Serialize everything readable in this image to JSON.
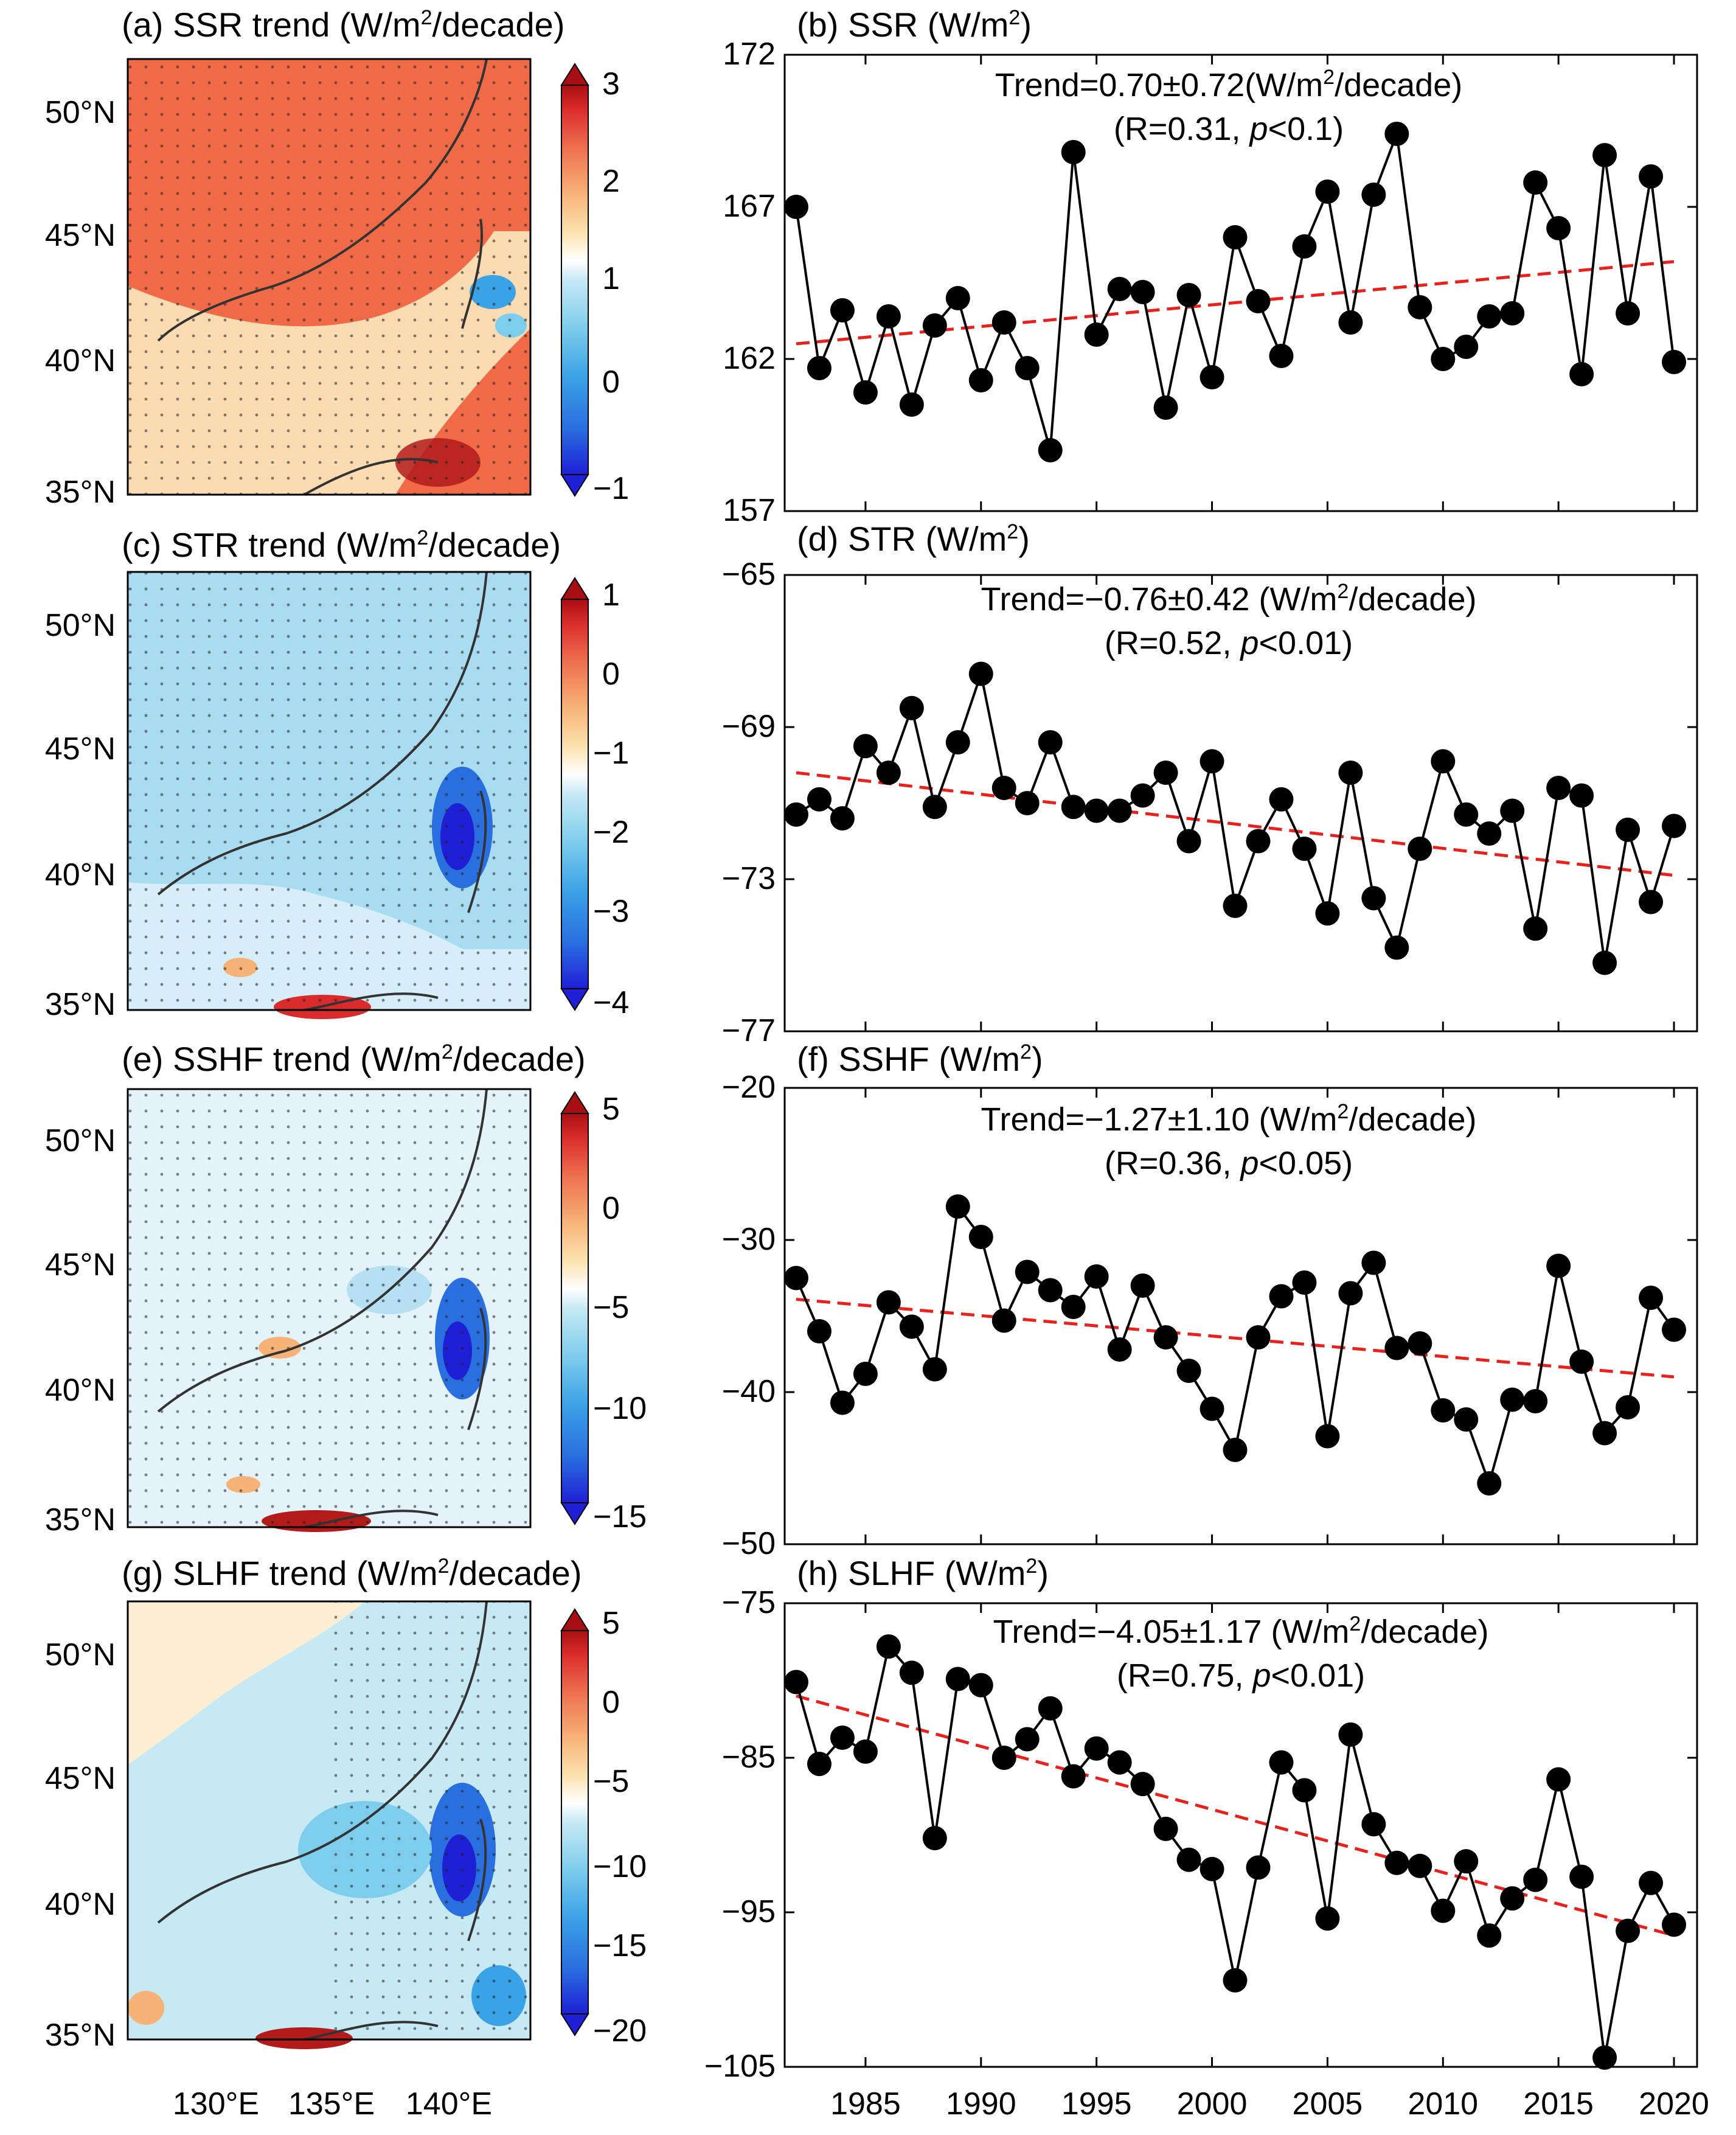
{
  "colors": {
    "marker": "#000000",
    "series_line": "#000000",
    "trend_line": "#e8211c",
    "map_cmap": [
      "#1f1fd6",
      "#2a6fe0",
      "#3aa2e6",
      "#7fcdec",
      "#c7e9f4",
      "#ffffff",
      "#fbe3b0",
      "#f7b377",
      "#ee6f4e",
      "#d92b2b",
      "#a80f12"
    ],
    "stipple": "#222222",
    "land": "#e9f2f6",
    "coast": "#333333"
  },
  "map_axes": {
    "lat_ticks": [
      "50°N",
      "45°N",
      "40°N",
      "35°N"
    ],
    "lon_ticks": [
      "130°E",
      "135°E",
      "140°E"
    ]
  },
  "panels": [
    {
      "map": {
        "title_pre": "(a) SSR trend (W/m",
        "title_sup": "2",
        "title_post": "/decade)",
        "field_mean": "warm",
        "colorbar_ticks": [
          "3",
          "2",
          "1",
          "0",
          "−1"
        ],
        "colorbar_range": [
          -1,
          3
        ]
      },
      "series": {
        "title_pre": "(b) SSR (W/m",
        "title_sup": "2",
        "title_post": ")",
        "trend_pre": "Trend=0.70±0.72(W/m",
        "trend_sup": "2",
        "trend_post": "/decade)",
        "stats_pre": "(R=0.31, ",
        "stats_p": "p",
        "stats_post": "<0.1)",
        "y_ticks": [
          "172",
          "167",
          "162",
          "157"
        ]
      }
    },
    {
      "map": {
        "title_pre": "(c) STR trend (W/m",
        "title_sup": "2",
        "title_post": "/decade)",
        "field_mean": "cool_light",
        "colorbar_ticks": [
          "1",
          "0",
          "−1",
          "−2",
          "−3",
          "−4"
        ],
        "colorbar_range": [
          -4,
          1
        ]
      },
      "series": {
        "title_pre": "(d) STR (W/m",
        "title_sup": "2",
        "title_post": ")",
        "trend_pre": "Trend=−0.76±0.42 (W/m",
        "trend_sup": "2",
        "trend_post": "/decade)",
        "stats_pre": "(R=0.52, ",
        "stats_p": "p",
        "stats_post": "<0.01)",
        "y_ticks": [
          "−65",
          "−69",
          "−73",
          "−77"
        ]
      }
    },
    {
      "map": {
        "title_pre": "(e) SSHF trend (W/m",
        "title_sup": "2",
        "title_post": "/decade)",
        "field_mean": "neutral",
        "colorbar_ticks": [
          "5",
          "0",
          "−5",
          "−10",
          "−15"
        ],
        "colorbar_range": [
          -15,
          5
        ]
      },
      "series": {
        "title_pre": "(f) SSHF (W/m",
        "title_sup": "2",
        "title_post": ")",
        "trend_pre": "Trend=−1.27±1.10 (W/m",
        "trend_sup": "2",
        "trend_post": "/decade)",
        "stats_pre": "(R=0.36, ",
        "stats_p": "p",
        "stats_post": "<0.05)",
        "y_ticks": [
          "−20",
          "−30",
          "−40",
          "−50"
        ]
      }
    },
    {
      "map": {
        "title_pre": "(g) SLHF trend (W/m",
        "title_sup": "2",
        "title_post": "/decade)",
        "field_mean": "cool",
        "colorbar_ticks": [
          "5",
          "0",
          "−5",
          "−10",
          "−15",
          "−20"
        ],
        "colorbar_range": [
          -20,
          5
        ]
      },
      "series": {
        "title_pre": "(h) SLHF (W/m",
        "title_sup": "2",
        "title_post": ")",
        "trend_pre": "Trend=−4.05±1.17 (W/m",
        "trend_sup": "2",
        "trend_post": "/decade)",
        "stats_pre": "(R=0.75, ",
        "stats_p": "p",
        "stats_post": "<0.01)",
        "y_ticks": [
          "−75",
          "−85",
          "−95",
          "−105"
        ]
      }
    }
  ],
  "x_ticks": [
    "1985",
    "1990",
    "1995",
    "2000",
    "2005",
    "2010",
    "2015",
    "2020"
  ],
  "chart_data": [
    {
      "type": "line",
      "name": "SSR",
      "title": "(b) SSR (W/m2)",
      "ylabel": "W/m2",
      "x": [
        1982,
        1983,
        1984,
        1985,
        1986,
        1987,
        1988,
        1989,
        1990,
        1991,
        1992,
        1993,
        1994,
        1995,
        1996,
        1997,
        1998,
        1999,
        2000,
        2001,
        2002,
        2003,
        2004,
        2005,
        2006,
        2007,
        2008,
        2009,
        2010,
        2011,
        2012,
        2013,
        2014,
        2015,
        2016,
        2017,
        2018,
        2019,
        2020
      ],
      "values": [
        167.0,
        161.7,
        163.6,
        160.9,
        163.4,
        160.5,
        163.1,
        164.0,
        161.3,
        163.2,
        161.7,
        159.0,
        168.8,
        162.8,
        164.3,
        164.2,
        160.4,
        164.1,
        161.4,
        166.0,
        163.9,
        162.1,
        165.7,
        167.5,
        163.2,
        167.4,
        169.4,
        163.7,
        162.0,
        162.4,
        163.4,
        163.5,
        167.8,
        166.3,
        161.5,
        168.7,
        163.5,
        168.0,
        161.9
      ],
      "trend": {
        "start": [
          1982,
          162.5
        ],
        "end": [
          2020,
          165.2
        ],
        "style": "dashed"
      },
      "xlim": [
        1981.5,
        2021
      ],
      "ylim": [
        157,
        172
      ]
    },
    {
      "type": "line",
      "name": "STR",
      "title": "(d) STR (W/m2)",
      "ylabel": "W/m2",
      "x": [
        1982,
        1983,
        1984,
        1985,
        1986,
        1987,
        1988,
        1989,
        1990,
        1991,
        1992,
        1993,
        1994,
        1995,
        1996,
        1997,
        1998,
        1999,
        2000,
        2001,
        2002,
        2003,
        2004,
        2005,
        2006,
        2007,
        2008,
        2009,
        2010,
        2011,
        2012,
        2013,
        2014,
        2015,
        2016,
        2017,
        2018,
        2019,
        2020
      ],
      "values": [
        -71.3,
        -70.9,
        -71.4,
        -69.5,
        -70.2,
        -68.5,
        -71.1,
        -69.4,
        -67.6,
        -70.6,
        -71.0,
        -69.4,
        -71.1,
        -71.2,
        -71.2,
        -70.8,
        -70.2,
        -72.0,
        -69.9,
        -73.7,
        -72.0,
        -70.9,
        -72.2,
        -73.9,
        -70.2,
        -73.5,
        -74.8,
        -72.2,
        -69.9,
        -71.3,
        -71.8,
        -71.2,
        -74.3,
        -70.6,
        -70.8,
        -75.2,
        -71.7,
        -73.6,
        -71.6
      ],
      "trend": {
        "start": [
          1982,
          -70.2
        ],
        "end": [
          2020,
          -72.9
        ],
        "style": "dashed"
      },
      "xlim": [
        1981.5,
        2021
      ],
      "ylim": [
        -77,
        -65
      ]
    },
    {
      "type": "line",
      "name": "SSHF",
      "title": "(f) SSHF (W/m2)",
      "ylabel": "W/m2",
      "x": [
        1982,
        1983,
        1984,
        1985,
        1986,
        1987,
        1988,
        1989,
        1990,
        1991,
        1992,
        1993,
        1994,
        1995,
        1996,
        1997,
        1998,
        1999,
        2000,
        2001,
        2002,
        2003,
        2004,
        2005,
        2006,
        2007,
        2008,
        2009,
        2010,
        2011,
        2012,
        2013,
        2014,
        2015,
        2016,
        2017,
        2018,
        2019,
        2020
      ],
      "values": [
        -32.5,
        -36.0,
        -40.7,
        -38.8,
        -34.1,
        -35.7,
        -38.5,
        -27.8,
        -29.8,
        -35.3,
        -32.1,
        -33.3,
        -34.4,
        -32.4,
        -37.2,
        -33.0,
        -36.4,
        -38.6,
        -41.1,
        -43.8,
        -36.4,
        -33.7,
        -32.8,
        -42.9,
        -33.5,
        -31.5,
        -37.1,
        -36.8,
        -41.2,
        -41.8,
        -46.0,
        -40.5,
        -40.6,
        -31.7,
        -38.0,
        -42.7,
        -41.0,
        -33.8,
        -35.9
      ],
      "trend": {
        "start": [
          1982,
          -33.9
        ],
        "end": [
          2020,
          -39.0
        ],
        "style": "dashed"
      },
      "xlim": [
        1981.5,
        2021
      ],
      "ylim": [
        -50,
        -20
      ]
    },
    {
      "type": "line",
      "name": "SLHF",
      "title": "(h) SLHF (W/m2)",
      "ylabel": "W/m2",
      "x": [
        1982,
        1983,
        1984,
        1985,
        1986,
        1987,
        1988,
        1989,
        1990,
        1991,
        1992,
        1993,
        1994,
        1995,
        1996,
        1997,
        1998,
        1999,
        2000,
        2001,
        2002,
        2003,
        2004,
        2005,
        2006,
        2007,
        2008,
        2009,
        2010,
        2011,
        2012,
        2013,
        2014,
        2015,
        2016,
        2017,
        2018,
        2019,
        2020
      ],
      "values": [
        -80.1,
        -85.4,
        -83.7,
        -84.6,
        -77.8,
        -79.5,
        -90.2,
        -79.9,
        -80.3,
        -85.0,
        -83.8,
        -81.8,
        -86.2,
        -84.4,
        -85.3,
        -86.7,
        -89.6,
        -91.6,
        -92.2,
        -99.4,
        -92.1,
        -85.3,
        -87.1,
        -95.4,
        -83.5,
        -89.3,
        -91.8,
        -92.0,
        -94.9,
        -91.7,
        -96.5,
        -94.1,
        -92.9,
        -86.4,
        -92.7,
        -104.4,
        -96.2,
        -93.1,
        -95.8
      ],
      "trend": {
        "start": [
          1982,
          -81.0
        ],
        "end": [
          2020,
          -96.5
        ],
        "style": "dashed"
      },
      "xlim": [
        1981.5,
        2021
      ],
      "ylim": [
        -105,
        -75
      ]
    }
  ]
}
